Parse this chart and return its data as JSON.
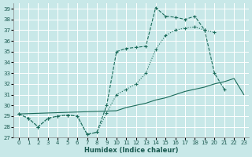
{
  "xlabel": "Humidex (Indice chaleur)",
  "bg_color": "#c8e8e8",
  "grid_color": "#b8d8d8",
  "line_color": "#1a6b5a",
  "xlim": [
    -0.5,
    23.5
  ],
  "ylim": [
    27,
    39.5
  ],
  "xticks": [
    0,
    1,
    2,
    3,
    4,
    5,
    6,
    7,
    8,
    9,
    10,
    11,
    12,
    13,
    14,
    15,
    16,
    17,
    18,
    19,
    20,
    21,
    22,
    23
  ],
  "yticks": [
    27,
    28,
    29,
    30,
    31,
    32,
    33,
    34,
    35,
    36,
    37,
    38,
    39
  ],
  "line1_x": [
    0,
    1,
    2,
    3,
    4,
    5,
    6,
    7,
    8,
    9,
    10,
    11,
    12,
    13,
    14,
    15,
    16,
    17,
    18,
    19,
    20,
    21,
    22,
    23
  ],
  "line1_y": [
    29.2,
    28.8,
    28.0,
    28.8,
    29.0,
    29.1,
    29.0,
    27.3,
    27.5,
    29.3,
    31.0,
    31.5,
    32.0,
    33.0,
    35.2,
    36.5,
    37.0,
    37.2,
    37.3,
    37.0,
    36.8,
    null,
    null,
    null
  ],
  "line2_x": [
    0,
    1,
    2,
    3,
    4,
    5,
    6,
    7,
    8,
    9,
    10,
    11,
    12,
    13,
    14,
    15,
    16,
    17,
    18,
    19,
    20,
    21,
    22,
    23
  ],
  "line2_y": [
    29.2,
    28.8,
    28.0,
    28.8,
    29.0,
    29.1,
    29.0,
    27.3,
    27.5,
    30.0,
    35.0,
    35.3,
    35.4,
    35.5,
    39.1,
    38.3,
    38.2,
    38.0,
    38.3,
    37.0,
    33.0,
    31.5,
    null,
    null
  ],
  "line3_x": [
    0,
    1,
    2,
    3,
    4,
    5,
    6,
    7,
    8,
    9,
    10,
    11,
    12,
    13,
    14,
    15,
    16,
    17,
    18,
    19,
    20,
    21,
    22,
    23
  ],
  "line3_y": [
    29.2,
    null,
    null,
    null,
    null,
    null,
    null,
    null,
    null,
    null,
    29.5,
    29.8,
    30.0,
    30.2,
    30.5,
    30.7,
    31.0,
    31.3,
    31.5,
    31.7,
    32.0,
    32.2,
    32.5,
    31.0
  ]
}
